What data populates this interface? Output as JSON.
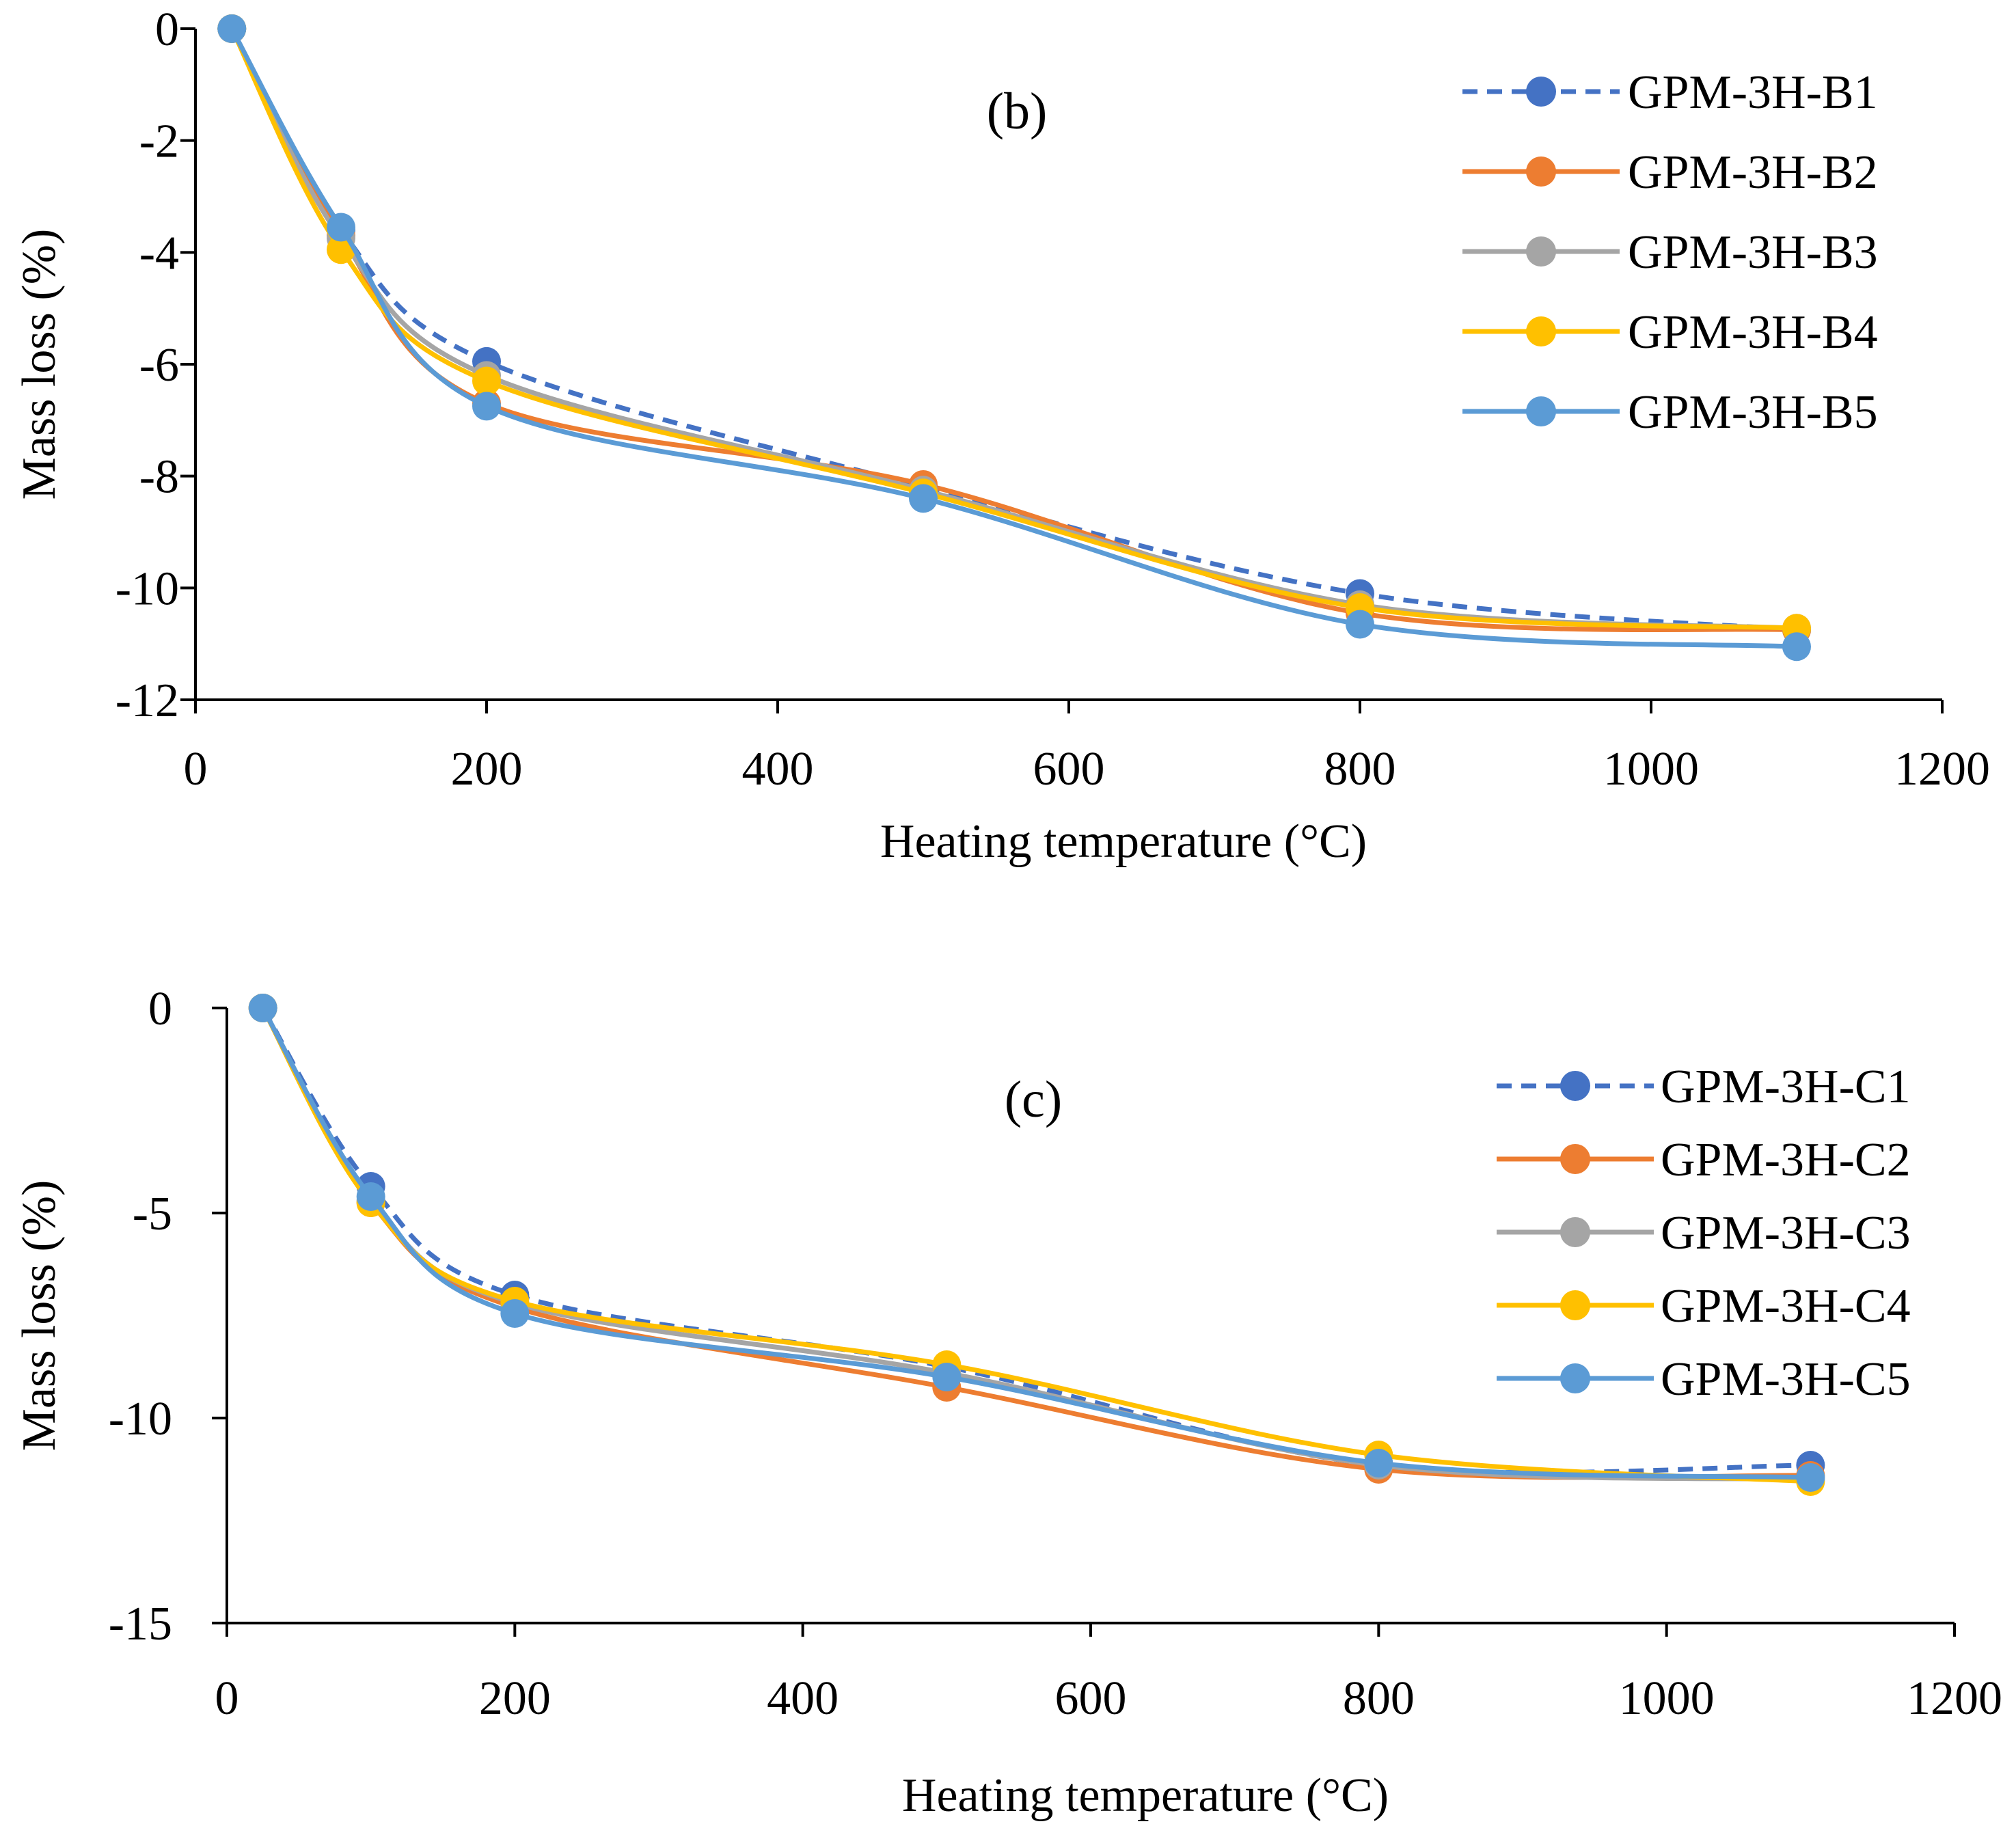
{
  "chart_data": [
    {
      "type": "line",
      "title": "(b)",
      "xlabel": "Heating temperature (°C)",
      "ylabel": "Mass loss (%)",
      "xlim": [
        0,
        1200
      ],
      "ylim": [
        -12,
        0
      ],
      "xticks": [
        0,
        200,
        400,
        600,
        800,
        1000,
        1200
      ],
      "yticks": [
        0,
        -2,
        -4,
        -6,
        -8,
        -10,
        -12
      ],
      "grid": false,
      "legend_position": "top-right",
      "x": [
        25,
        100,
        200,
        500,
        800,
        1100
      ],
      "series": [
        {
          "name": "GPM-3H-B1",
          "color": "#4472C4",
          "dashed": true,
          "values": [
            0,
            -3.6,
            -5.95,
            -8.2,
            -10.1,
            -10.75
          ]
        },
        {
          "name": "GPM-3H-B2",
          "color": "#ED7D31",
          "dashed": false,
          "values": [
            0,
            -3.7,
            -6.7,
            -8.15,
            -10.45,
            -10.75
          ]
        },
        {
          "name": "GPM-3H-B3",
          "color": "#A5A5A5",
          "dashed": false,
          "values": [
            0,
            -3.75,
            -6.2,
            -8.25,
            -10.3,
            -10.72
          ]
        },
        {
          "name": "GPM-3H-B4",
          "color": "#FFC000",
          "dashed": false,
          "values": [
            0,
            -3.95,
            -6.3,
            -8.3,
            -10.35,
            -10.72
          ]
        },
        {
          "name": "GPM-3H-B5",
          "color": "#5B9BD5",
          "dashed": false,
          "values": [
            0,
            -3.55,
            -6.75,
            -8.4,
            -10.65,
            -11.05
          ]
        }
      ]
    },
    {
      "type": "line",
      "title": "(c)",
      "xlabel": "Heating temperature (°C)",
      "ylabel": "Mass loss (%)",
      "xlim": [
        0,
        1200
      ],
      "ylim": [
        -15,
        0
      ],
      "xticks": [
        0,
        200,
        400,
        600,
        800,
        1000,
        1200
      ],
      "yticks": [
        0,
        -5,
        -10,
        -15
      ],
      "grid": false,
      "legend_position": "top-right",
      "x": [
        25,
        100,
        200,
        500,
        800,
        1100
      ],
      "series": [
        {
          "name": "GPM-3H-C1",
          "color": "#4472C4",
          "dashed": true,
          "values": [
            0,
            -4.35,
            -7.0,
            -8.75,
            -11.15,
            -11.15
          ]
        },
        {
          "name": "GPM-3H-C2",
          "color": "#ED7D31",
          "dashed": false,
          "values": [
            0,
            -4.75,
            -7.3,
            -9.25,
            -11.25,
            -11.4
          ]
        },
        {
          "name": "GPM-3H-C3",
          "color": "#A5A5A5",
          "dashed": false,
          "values": [
            0,
            -4.7,
            -7.2,
            -8.9,
            -11.15,
            -11.5
          ]
        },
        {
          "name": "GPM-3H-C4",
          "color": "#FFC000",
          "dashed": false,
          "values": [
            0,
            -4.75,
            -7.15,
            -8.7,
            -10.9,
            -11.55
          ]
        },
        {
          "name": "GPM-3H-C5",
          "color": "#5B9BD5",
          "dashed": false,
          "values": [
            0,
            -4.6,
            -7.45,
            -9.0,
            -11.1,
            -11.45
          ]
        }
      ]
    }
  ]
}
